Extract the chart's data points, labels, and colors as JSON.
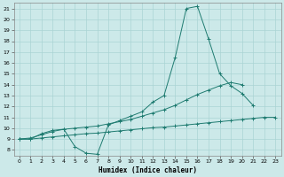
{
  "xlabel": "Humidex (Indice chaleur)",
  "xlim": [
    -0.5,
    23.5
  ],
  "ylim": [
    7.5,
    21.5
  ],
  "xticks": [
    0,
    1,
    2,
    3,
    4,
    5,
    6,
    7,
    8,
    9,
    10,
    11,
    12,
    13,
    14,
    15,
    16,
    17,
    18,
    19,
    20,
    21,
    22,
    23
  ],
  "yticks": [
    8,
    9,
    10,
    11,
    12,
    13,
    14,
    15,
    16,
    17,
    18,
    19,
    20,
    21
  ],
  "bg_color": "#cce9e9",
  "line_color": "#1e7b70",
  "grid_color": "#aad4d4",
  "curve1_x": [
    0,
    1,
    2,
    3,
    4,
    5,
    6,
    7,
    8,
    9,
    10,
    11,
    12,
    13,
    14,
    15,
    16,
    17,
    18,
    19,
    20,
    21
  ],
  "curve1_y": [
    9.0,
    9.0,
    9.5,
    9.8,
    9.9,
    8.3,
    7.7,
    7.6,
    10.3,
    10.7,
    11.1,
    11.5,
    12.4,
    13.0,
    16.5,
    21.0,
    21.2,
    18.2,
    15.0,
    13.9,
    13.2,
    12.1
  ],
  "curve2_x": [
    0,
    1,
    2,
    3,
    4,
    5,
    6,
    7,
    8,
    9,
    10,
    11,
    12,
    13,
    14,
    15,
    16,
    17,
    18,
    19,
    20
  ],
  "curve2_y": [
    9.0,
    9.1,
    9.4,
    9.7,
    9.9,
    10.0,
    10.1,
    10.2,
    10.4,
    10.6,
    10.8,
    11.1,
    11.4,
    11.7,
    12.1,
    12.6,
    13.1,
    13.5,
    13.9,
    14.2,
    14.0
  ],
  "curve3_x": [
    0,
    1,
    2,
    3,
    4,
    5,
    6,
    7,
    8,
    9,
    10,
    11,
    12,
    13,
    14,
    15,
    16,
    17,
    18,
    19,
    20,
    21,
    22,
    23
  ],
  "curve3_y": [
    9.0,
    9.0,
    9.1,
    9.2,
    9.3,
    9.4,
    9.5,
    9.55,
    9.65,
    9.75,
    9.85,
    9.95,
    10.05,
    10.1,
    10.2,
    10.3,
    10.4,
    10.5,
    10.6,
    10.7,
    10.8,
    10.9,
    11.0,
    11.0
  ]
}
